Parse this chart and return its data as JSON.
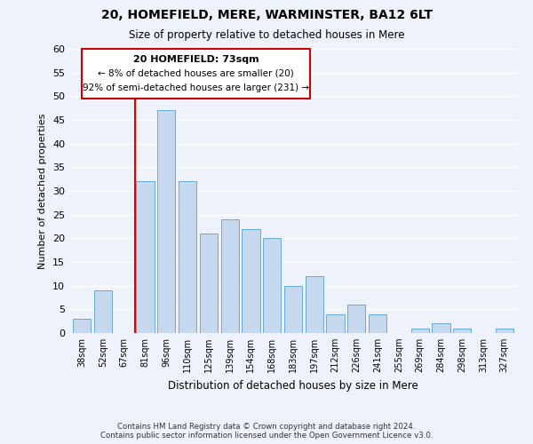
{
  "title": "20, HOMEFIELD, MERE, WARMINSTER, BA12 6LT",
  "subtitle": "Size of property relative to detached houses in Mere",
  "xlabel": "Distribution of detached houses by size in Mere",
  "ylabel": "Number of detached properties",
  "categories": [
    "38sqm",
    "52sqm",
    "67sqm",
    "81sqm",
    "96sqm",
    "110sqm",
    "125sqm",
    "139sqm",
    "154sqm",
    "168sqm",
    "183sqm",
    "197sqm",
    "212sqm",
    "226sqm",
    "241sqm",
    "255sqm",
    "269sqm",
    "284sqm",
    "298sqm",
    "313sqm",
    "327sqm"
  ],
  "values": [
    3,
    9,
    0,
    32,
    47,
    32,
    21,
    24,
    22,
    20,
    10,
    12,
    4,
    6,
    4,
    0,
    1,
    2,
    1,
    0,
    1
  ],
  "bar_color": "#c5d8ee",
  "bar_edge_color": "#6aaad4",
  "vline_color": "#dd0000",
  "vline_x_index": 2.5,
  "ylim": [
    0,
    60
  ],
  "yticks": [
    0,
    5,
    10,
    15,
    20,
    25,
    30,
    35,
    40,
    45,
    50,
    55,
    60
  ],
  "annotation_title": "20 HOMEFIELD: 73sqm",
  "annotation_line1": "← 8% of detached houses are smaller (20)",
  "annotation_line2": "92% of semi-detached houses are larger (231) →",
  "annotation_box_color": "#ffffff",
  "annotation_box_edge": "#cc0000",
  "footer_line1": "Contains HM Land Registry data © Crown copyright and database right 2024.",
  "footer_line2": "Contains public sector information licensed under the Open Government Licence v3.0.",
  "background_color": "#eef2fb",
  "grid_color": "#ffffff"
}
